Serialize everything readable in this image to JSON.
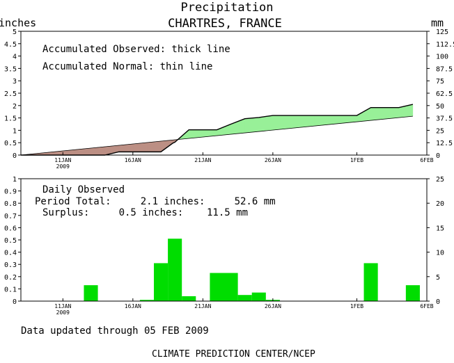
{
  "title": "Precipitation",
  "subtitle": "CHARTRES, FRANCE",
  "footer_updated": "Data updated through 05 FEB 2009",
  "footer_credit": "CLIMATE PREDICTION CENTER/NCEP",
  "colors": {
    "surplus_fill": "#98f098",
    "deficit_fill": "#bc8f84",
    "daily_bar": "#00dd00",
    "axis": "#000000"
  },
  "chart_data": [
    {
      "type": "area",
      "left_unit": "inches",
      "right_unit": "mm",
      "legend": [
        "Accumulated Observed: thick line",
        "Accumulated Normal: thin line"
      ],
      "x_ticks": [
        {
          "day": 10,
          "label": "11JAN",
          "sublabel": "2009"
        },
        {
          "day": 15,
          "label": "16JAN",
          "sublabel": ""
        },
        {
          "day": 20,
          "label": "21JAN",
          "sublabel": ""
        },
        {
          "day": 25,
          "label": "26JAN",
          "sublabel": ""
        },
        {
          "day": 31,
          "label": "1FEB",
          "sublabel": ""
        },
        {
          "day": 36,
          "label": "6FEB",
          "sublabel": ""
        }
      ],
      "xlim": [
        7,
        36
      ],
      "ylim_left": [
        0,
        5
      ],
      "yticks_left": [
        "0",
        "0.5",
        "1",
        "1.5",
        "2",
        "2.5",
        "3",
        "3.5",
        "4",
        "4.5",
        "5"
      ],
      "ylim_right": [
        0,
        125
      ],
      "yticks_right": [
        "0",
        "12.5",
        "25",
        "37.5",
        "50",
        "62.5",
        "75",
        "87.5",
        "100",
        "112.5",
        "125"
      ],
      "series": [
        {
          "name": "Accumulated Observed",
          "x": [
            7,
            12,
            13,
            14,
            15,
            16,
            17,
            17.85,
            18,
            19,
            20,
            21,
            22,
            23,
            24,
            25,
            26,
            27,
            28,
            29,
            30,
            31,
            32,
            33,
            34,
            35
          ],
          "values": [
            0,
            0,
            0,
            0.13,
            0.13,
            0.13,
            0.13,
            0.48,
            0.52,
            1.02,
            1.02,
            1.02,
            1.25,
            1.47,
            1.52,
            1.6,
            1.6,
            1.6,
            1.6,
            1.6,
            1.6,
            1.6,
            1.92,
            1.92,
            1.92,
            2.05
          ]
        },
        {
          "name": "Accumulated Normal",
          "x": [
            7,
            35
          ],
          "values": [
            0,
            1.57
          ]
        }
      ]
    },
    {
      "type": "bar",
      "title": "Daily Observed",
      "period_total": "Period Total:     2.1 inches:     52.6 mm",
      "surplus": "Surplus:     0.5 inches:    11.5 mm",
      "xlim": [
        7,
        36
      ],
      "ylim_left": [
        0,
        1
      ],
      "yticks_left": [
        "0",
        "0.1",
        "0.2",
        "0.3",
        "0.4",
        "0.5",
        "0.6",
        "0.7",
        "0.8",
        "0.9",
        "1"
      ],
      "ylim_right": [
        0,
        25
      ],
      "yticks_right": [
        "0",
        "5",
        "10",
        "15",
        "20",
        "25"
      ],
      "x_ticks": [
        {
          "day": 10,
          "label": "11JAN",
          "sublabel": "2009"
        },
        {
          "day": 15,
          "label": "16JAN",
          "sublabel": ""
        },
        {
          "day": 20,
          "label": "21JAN",
          "sublabel": ""
        },
        {
          "day": 25,
          "label": "26JAN",
          "sublabel": ""
        },
        {
          "day": 31,
          "label": "1FEB",
          "sublabel": ""
        },
        {
          "day": 36,
          "label": "6FEB",
          "sublabel": ""
        }
      ],
      "bars": [
        {
          "day": 12,
          "value": 0.13
        },
        {
          "day": 16,
          "value": 0.01
        },
        {
          "day": 17,
          "value": 0.31
        },
        {
          "day": 18,
          "value": 0.51
        },
        {
          "day": 19,
          "value": 0.04
        },
        {
          "day": 21,
          "value": 0.23
        },
        {
          "day": 22,
          "value": 0.23
        },
        {
          "day": 23,
          "value": 0.05
        },
        {
          "day": 24,
          "value": 0.07
        },
        {
          "day": 25,
          "value": 0.01
        },
        {
          "day": 32,
          "value": 0.31
        },
        {
          "day": 35,
          "value": 0.13
        }
      ]
    }
  ]
}
